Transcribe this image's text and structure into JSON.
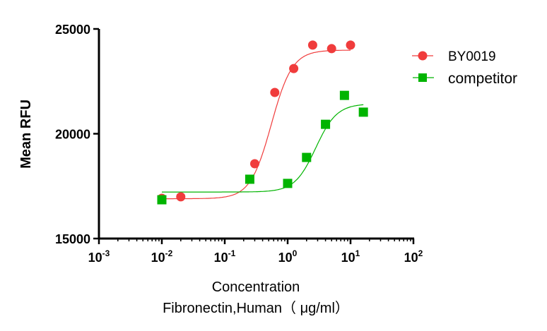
{
  "chart_data": {
    "type": "scatter",
    "title": "",
    "xlabel": "Concentration",
    "xlabel2": "Fibronectin,Human（ μg/ml）",
    "ylabel": "Mean RFU",
    "xscale": "log",
    "xlim": [
      0.001,
      100
    ],
    "ylim": [
      15000,
      25000
    ],
    "xticks": [
      {
        "base": "10",
        "exp": "-3"
      },
      {
        "base": "10",
        "exp": "-2"
      },
      {
        "base": "10",
        "exp": "-1"
      },
      {
        "base": "10",
        "exp": "0"
      },
      {
        "base": "10",
        "exp": "1"
      },
      {
        "base": "10",
        "exp": "2"
      }
    ],
    "yticks": [
      "15000",
      "20000",
      "25000"
    ],
    "grid": false,
    "legend_position": "top-right",
    "series": [
      {
        "name": "BY0019",
        "color": "#f03c3c",
        "marker": "circle",
        "x": [
          0.01,
          0.02,
          0.3,
          0.625,
          1.25,
          2.5,
          5,
          10
        ],
        "y": [
          16920,
          16990,
          18570,
          21970,
          23110,
          24230,
          24060,
          24230
        ],
        "fit": {
          "bottom": 16900,
          "top": 23990,
          "ec50": 0.55,
          "hill": 2.6,
          "xrange": [
            0.01,
            10
          ]
        }
      },
      {
        "name": "competitor",
        "color": "#00b400",
        "marker": "square",
        "x": [
          0.01,
          0.25,
          1,
          2,
          4,
          8,
          16
        ],
        "y": [
          16850,
          17830,
          17630,
          18870,
          20450,
          21830,
          21030
        ],
        "fit": {
          "bottom": 17220,
          "top": 21430,
          "ec50": 2.8,
          "hill": 2.6,
          "xrange": [
            0.01,
            16
          ]
        }
      }
    ]
  }
}
